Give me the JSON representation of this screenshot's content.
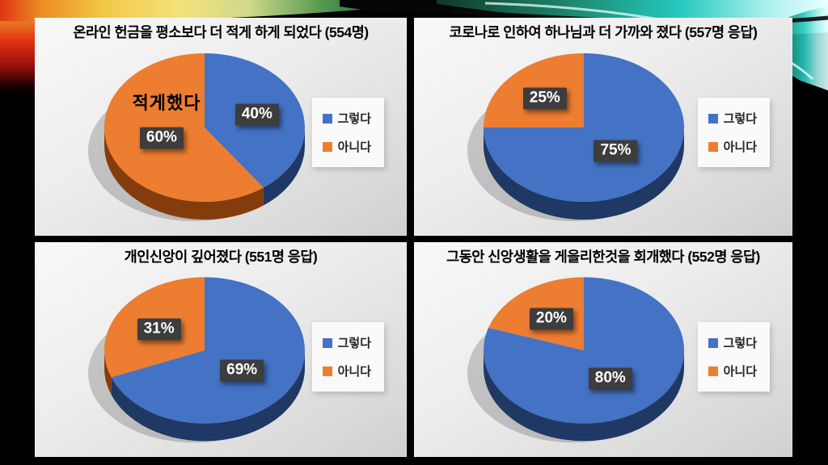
{
  "slide": {
    "background": "#000000"
  },
  "legend": {
    "yes": "그렇다",
    "no": "아니다"
  },
  "colors": {
    "yes": "#4472C4",
    "no": "#ED7D31",
    "yes_dark": "#1F3864",
    "no_dark": "#843C0C",
    "badge_bg": "#3d3d3d",
    "badge_text": "#ffffff",
    "panel_bg": "#e8e8e8"
  },
  "chart_data": [
    {
      "type": "pie",
      "title": "온라인 헌금을 평소보다 더 적게 하게 되었다 (554명)",
      "annotation": "적게했다",
      "legend_position": "right",
      "slices": [
        {
          "name": "그렇다",
          "value": 40,
          "label": "40%"
        },
        {
          "name": "아니다",
          "value": 60,
          "label": "60%"
        }
      ]
    },
    {
      "type": "pie",
      "title": "코로나로 인하여 하나님과 더 가까와 졌다 (557명 응답)",
      "annotation": "",
      "legend_position": "right",
      "slices": [
        {
          "name": "그렇다",
          "value": 75,
          "label": "75%"
        },
        {
          "name": "아니다",
          "value": 25,
          "label": "25%"
        }
      ]
    },
    {
      "type": "pie",
      "title": "개인신앙이 깊어졌다 (551명 응답)",
      "annotation": "",
      "legend_position": "right",
      "slices": [
        {
          "name": "그렇다",
          "value": 69,
          "label": "69%"
        },
        {
          "name": "아니다",
          "value": 31,
          "label": "31%"
        }
      ]
    },
    {
      "type": "pie",
      "title": "그동안 신앙생활을 게을리한것을 회개했다 (552명 응답)",
      "annotation": "",
      "legend_position": "right",
      "slices": [
        {
          "name": "그렇다",
          "value": 80,
          "label": "80%"
        },
        {
          "name": "아니다",
          "value": 20,
          "label": "20%"
        }
      ]
    }
  ]
}
